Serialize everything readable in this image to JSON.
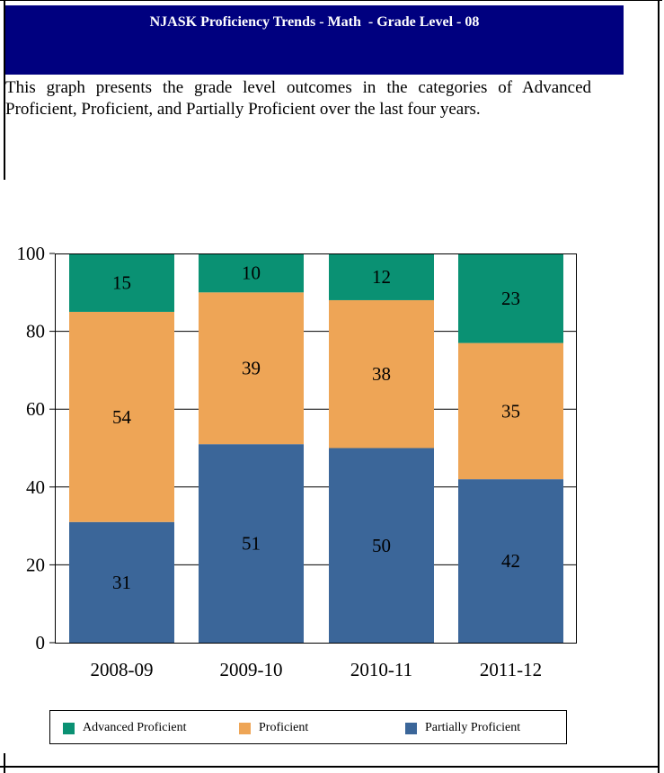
{
  "header": {
    "title": "NJASK Proficiency Trends - Math  - Grade Level - 08"
  },
  "description": "This graph presents the grade level outcomes in the categories of Advanced Proficient, Proficient, and Partially Proficient over the last four years.",
  "colors": {
    "title_bar": "#00007f",
    "advanced": "#0a9173",
    "proficient": "#eea556",
    "partial": "#3b6699"
  },
  "legend": {
    "advanced": "Advanced Proficient",
    "proficient": "Proficient",
    "partial": "Partially Proficient"
  },
  "chart_data": {
    "type": "bar",
    "stacked": true,
    "categories": [
      "2008-09",
      "2009-10",
      "2010-11",
      "2011-12"
    ],
    "series": [
      {
        "name": "Partially Proficient",
        "values": [
          31,
          51,
          50,
          42
        ]
      },
      {
        "name": "Proficient",
        "values": [
          54,
          39,
          38,
          35
        ]
      },
      {
        "name": "Advanced Proficient",
        "values": [
          15,
          10,
          12,
          23
        ]
      }
    ],
    "y_ticks": [
      "0",
      "20",
      "40",
      "60",
      "80",
      "100"
    ],
    "ylim": [
      0,
      100
    ],
    "grid": true,
    "legend_position": "bottom"
  }
}
